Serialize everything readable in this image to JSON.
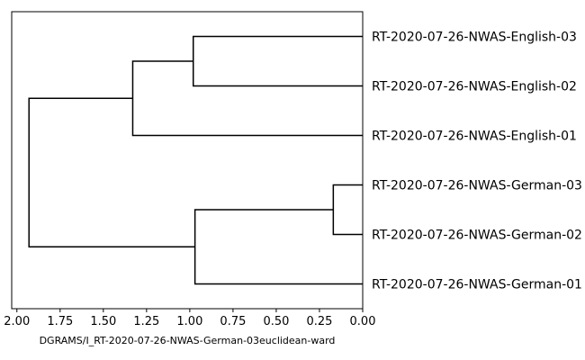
{
  "chart_data": {
    "type": "dendrogram",
    "orientation": "left",
    "xlabel": "DGRAMS/I_RT-2020-07-26-NWAS-German-03euclidean-ward",
    "xlim": [
      2.03,
      0.0
    ],
    "xticks": [
      2.0,
      1.75,
      1.5,
      1.25,
      1.0,
      0.75,
      0.5,
      0.25,
      0.0
    ],
    "xtick_labels": [
      "2.00",
      "1.75",
      "1.50",
      "1.25",
      "1.00",
      "0.75",
      "0.50",
      "0.25",
      "0.00"
    ],
    "leaves": [
      "RT-2020-07-26-NWAS-English-03",
      "RT-2020-07-26-NWAS-English-02",
      "RT-2020-07-26-NWAS-English-01",
      "RT-2020-07-26-NWAS-German-03",
      "RT-2020-07-26-NWAS-German-02",
      "RT-2020-07-26-NWAS-German-01"
    ],
    "merges": [
      {
        "id": "g32",
        "left": "leaf:3",
        "right": "leaf:4",
        "distance": 0.17
      },
      {
        "id": "e32",
        "left": "leaf:0",
        "right": "leaf:1",
        "distance": 0.98
      },
      {
        "id": "g321",
        "left": "node:g32",
        "right": "leaf:5",
        "distance": 0.97
      },
      {
        "id": "e321",
        "left": "node:e32",
        "right": "leaf:2",
        "distance": 1.33
      },
      {
        "id": "root",
        "left": "node:e321",
        "right": "node:g321",
        "distance": 1.93
      }
    ],
    "color": "#000000",
    "grid": false
  }
}
